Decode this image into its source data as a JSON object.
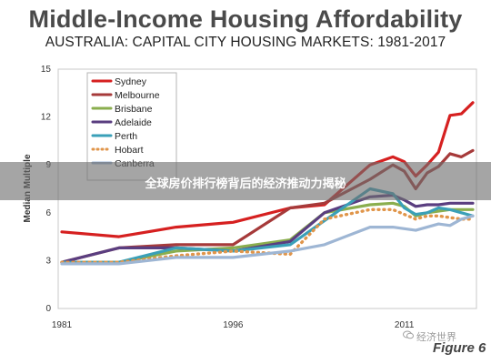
{
  "header": {
    "title": "Middle-Income Housing Affordability",
    "subtitle": "AUSTRALIA: CAPITAL CITY HOUSING MARKETS: 1981-2017"
  },
  "banner": {
    "text": "全球房价排行榜背后的经济推动力揭秘"
  },
  "figure_label": "Figure 6",
  "watermark": "经济世界",
  "chart_data": {
    "type": "line",
    "title": "Middle-Income Housing Affordability",
    "subtitle": "AUSTRALIA: CAPITAL CITY HOUSING MARKETS: 1981-2017",
    "xlabel": "",
    "ylabel": "Median Multiple",
    "xlim": [
      1981,
      2017
    ],
    "ylim": [
      0,
      15
    ],
    "x_ticks": [
      1981,
      1996,
      2011
    ],
    "y_ticks": [
      0,
      3,
      6,
      9,
      12,
      15
    ],
    "grid": false,
    "legend_position": "top-left",
    "x": [
      1981,
      1986,
      1991,
      1996,
      2001,
      2004,
      2008,
      2010,
      2011,
      2012,
      2013,
      2014,
      2015,
      2016,
      2017
    ],
    "series": [
      {
        "name": "Sydney",
        "color": "#d62020",
        "dash": "solid",
        "values": [
          4.8,
          4.5,
          5.1,
          5.4,
          6.3,
          6.5,
          9.0,
          9.5,
          9.2,
          8.3,
          9.0,
          9.8,
          12.1,
          12.2,
          12.9
        ]
      },
      {
        "name": "Melbourne",
        "color": "#a63a3a",
        "dash": "solid",
        "values": [
          2.9,
          3.8,
          4.0,
          4.0,
          6.3,
          6.6,
          8.1,
          9.0,
          8.6,
          7.5,
          8.5,
          8.9,
          9.7,
          9.5,
          9.9
        ]
      },
      {
        "name": "Brisbane",
        "color": "#8aae4e",
        "dash": "solid",
        "values": [
          2.9,
          2.9,
          3.6,
          3.8,
          4.3,
          6.0,
          6.5,
          6.6,
          6.4,
          5.8,
          6.0,
          6.1,
          6.2,
          6.2,
          6.2
        ]
      },
      {
        "name": "Adelaide",
        "color": "#5a3e80",
        "dash": "solid",
        "values": [
          2.9,
          3.8,
          3.8,
          3.6,
          4.2,
          6.0,
          7.0,
          7.1,
          6.8,
          6.4,
          6.5,
          6.5,
          6.6,
          6.6,
          6.6
        ]
      },
      {
        "name": "Perth",
        "color": "#3aa0b8",
        "dash": "solid",
        "values": [
          2.9,
          2.9,
          3.8,
          3.6,
          4.0,
          5.5,
          7.5,
          7.2,
          6.3,
          5.9,
          6.0,
          6.3,
          6.2,
          6.0,
          5.8
        ]
      },
      {
        "name": "Hobart",
        "color": "#e0954a",
        "dash": "dotted",
        "values": [
          2.9,
          2.9,
          3.3,
          3.6,
          3.4,
          5.6,
          6.2,
          6.2,
          5.9,
          5.6,
          5.8,
          5.8,
          5.7,
          5.6,
          5.6
        ]
      },
      {
        "name": "Canberra",
        "color": "#9eb6d4",
        "dash": "solid",
        "values": [
          2.8,
          2.8,
          3.2,
          3.2,
          3.6,
          4.0,
          5.1,
          5.1,
          5.0,
          4.9,
          5.1,
          5.3,
          5.2,
          5.6,
          5.8
        ]
      }
    ]
  }
}
